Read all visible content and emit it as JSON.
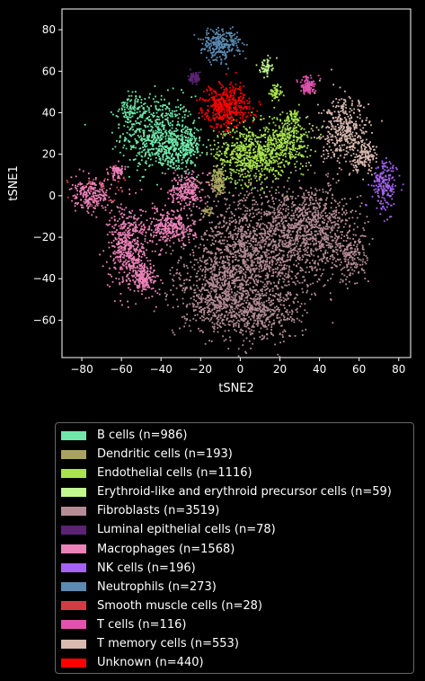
{
  "chart_data": {
    "type": "scatter",
    "xlabel": "tSNE2",
    "ylabel": "tSNE1",
    "xlim": [
      -90,
      86
    ],
    "ylim": [
      -78,
      90
    ],
    "xticks": [
      -80,
      -60,
      -40,
      -20,
      0,
      20,
      40,
      60,
      80
    ],
    "yticks": [
      -60,
      -40,
      -20,
      0,
      20,
      40,
      60,
      80
    ],
    "grid": false,
    "legend_placement": "below",
    "series": [
      {
        "name": "B cells (n=986)",
        "color": "#6ee7a8",
        "n": 986,
        "clusters": [
          {
            "cx": -42,
            "cy": 30,
            "sx": 9,
            "sy": 9,
            "w": 0.55
          },
          {
            "cx": -55,
            "cy": 42,
            "sx": 3,
            "sy": 4,
            "w": 0.1
          },
          {
            "cx": -26,
            "cy": 24,
            "sx": 3,
            "sy": 5,
            "w": 0.15
          },
          {
            "cx": -35,
            "cy": 22,
            "sx": 6,
            "sy": 5,
            "w": 0.2
          }
        ]
      },
      {
        "name": "Dendritic cells (n=193)",
        "color": "#a9a35f",
        "n": 193,
        "clusters": [
          {
            "cx": -11,
            "cy": 7,
            "sx": 2,
            "sy": 3.5,
            "w": 0.85
          },
          {
            "cx": -16,
            "cy": -7,
            "sx": 1.2,
            "sy": 1.2,
            "w": 0.15
          }
        ]
      },
      {
        "name": "Endothelial cells (n=1116)",
        "color": "#a8e34d",
        "n": 1116,
        "clusters": [
          {
            "cx": 5,
            "cy": 20,
            "sx": 9,
            "sy": 7,
            "w": 0.6
          },
          {
            "cx": 24,
            "cy": 26,
            "sx": 6,
            "sy": 6,
            "w": 0.3
          },
          {
            "cx": 18,
            "cy": 50,
            "sx": 1.5,
            "sy": 2,
            "w": 0.05
          },
          {
            "cx": 27,
            "cy": 38,
            "sx": 2,
            "sy": 2,
            "w": 0.05
          }
        ]
      },
      {
        "name": "Erythroid-like and erythroid precursor cells (n=59)",
        "color": "#c2f78f",
        "n": 59,
        "clusters": [
          {
            "cx": 13,
            "cy": 62,
            "sx": 1.5,
            "sy": 2,
            "w": 1
          }
        ]
      },
      {
        "name": "Fibroblasts (n=3519)",
        "color": "#b58c96",
        "n": 3519,
        "clusters": [
          {
            "cx": 5,
            "cy": -30,
            "sx": 16,
            "sy": 15,
            "w": 0.45
          },
          {
            "cx": 35,
            "cy": -15,
            "sx": 12,
            "sy": 10,
            "w": 0.25
          },
          {
            "cx": -12,
            "cy": -48,
            "sx": 9,
            "sy": 9,
            "w": 0.15
          },
          {
            "cx": 10,
            "cy": -57,
            "sx": 10,
            "sy": 6,
            "w": 0.1
          },
          {
            "cx": 55,
            "cy": -30,
            "sx": 5,
            "sy": 6,
            "w": 0.05
          }
        ]
      },
      {
        "name": "Luminal epithelial cells (n=78)",
        "color": "#5c2375",
        "n": 78,
        "clusters": [
          {
            "cx": -23,
            "cy": 57,
            "sx": 1.5,
            "sy": 1.5,
            "w": 1
          }
        ]
      },
      {
        "name": "Macrophages (n=1568)",
        "color": "#ec82b8",
        "n": 1568,
        "clusters": [
          {
            "cx": -56,
            "cy": -25,
            "sx": 5,
            "sy": 10,
            "w": 0.35
          },
          {
            "cx": -75,
            "cy": 0,
            "sx": 5,
            "sy": 4,
            "w": 0.15
          },
          {
            "cx": -27,
            "cy": 3,
            "sx": 4,
            "sy": 4,
            "w": 0.15
          },
          {
            "cx": -35,
            "cy": -15,
            "sx": 6,
            "sy": 4,
            "w": 0.2
          },
          {
            "cx": -62,
            "cy": 12,
            "sx": 2,
            "sy": 2,
            "w": 0.05
          },
          {
            "cx": -48,
            "cy": -40,
            "sx": 3,
            "sy": 3,
            "w": 0.1
          }
        ]
      },
      {
        "name": "NK cells (n=196)",
        "color": "#a463f2",
        "n": 196,
        "clusters": [
          {
            "cx": 73,
            "cy": 5,
            "sx": 3,
            "sy": 6,
            "w": 1
          }
        ]
      },
      {
        "name": "Neutrophils (n=273)",
        "color": "#5b8bb3",
        "n": 273,
        "clusters": [
          {
            "cx": -10,
            "cy": 73,
            "sx": 5,
            "sy": 4,
            "w": 1
          }
        ]
      },
      {
        "name": "Smooth muscle cells (n=28)",
        "color": "#d43a45",
        "n": 28,
        "clusters": [
          {
            "cx": -70,
            "cy": 5,
            "sx": 9,
            "sy": 4,
            "w": 1
          }
        ]
      },
      {
        "name": "T cells (n=116)",
        "color": "#e152ad",
        "n": 116,
        "clusters": [
          {
            "cx": 34,
            "cy": 53,
            "sx": 2,
            "sy": 2,
            "w": 1
          }
        ]
      },
      {
        "name": "T memory cells (n=553)",
        "color": "#d9b9b0",
        "n": 553,
        "clusters": [
          {
            "cx": 53,
            "cy": 30,
            "sx": 6,
            "sy": 8,
            "w": 0.75
          },
          {
            "cx": 63,
            "cy": 20,
            "sx": 3,
            "sy": 4,
            "w": 0.25
          }
        ]
      },
      {
        "name": "Unknown (n=440)",
        "color": "#ff0000",
        "n": 440,
        "clusters": [
          {
            "cx": -7,
            "cy": 43,
            "sx": 6,
            "sy": 5,
            "w": 1
          }
        ]
      }
    ]
  }
}
